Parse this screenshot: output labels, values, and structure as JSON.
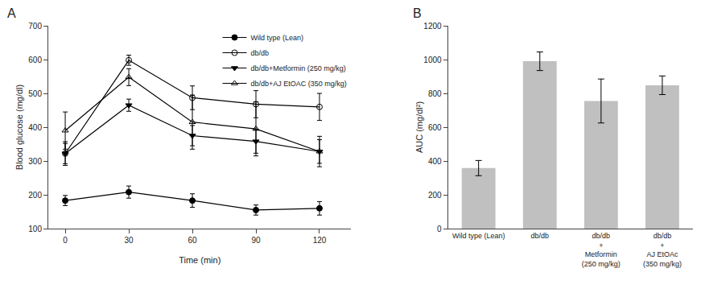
{
  "chart_data": [
    {
      "type": "line",
      "annotations": [
        "A"
      ],
      "xlabel": "Time (min)",
      "ylabel": "Blood glucose (mg/dl)",
      "x": [
        0,
        30,
        60,
        90,
        120
      ],
      "xlim": [
        -8,
        135
      ],
      "xticks": [
        0,
        30,
        60,
        90,
        120
      ],
      "ylim": [
        100,
        700
      ],
      "yticks": [
        100,
        200,
        300,
        400,
        500,
        600,
        700
      ],
      "grid": false,
      "legend": "upper right",
      "series": [
        {
          "name": "Wild type (Lean)",
          "color": "#000000",
          "marker": "circle",
          "line_style": "solid",
          "values": [
            183,
            208,
            183,
            155,
            160
          ],
          "errors": [
            15,
            18,
            20,
            15,
            20
          ]
        },
        {
          "name": "db/db",
          "color": "#000000",
          "marker": "circle-open",
          "line_style": "solid",
          "values": [
            322,
            598,
            487,
            468,
            460
          ],
          "errors": [
            35,
            15,
            35,
            40,
            40
          ]
        },
        {
          "name": "db/db+Metformin (250 mg/kg)",
          "color": "#000000",
          "marker": "triangle-down",
          "line_style": "solid",
          "values": [
            322,
            465,
            375,
            358,
            328
          ],
          "errors": [
            30,
            18,
            30,
            35,
            35
          ]
        },
        {
          "name": "db/db+AJ EtOAC (350 mg/kg)",
          "color": "#000000",
          "marker": "triangle-up-open",
          "line_style": "solid",
          "values": [
            390,
            548,
            415,
            395,
            328
          ],
          "errors": [
            55,
            25,
            80,
            80,
            45
          ]
        }
      ]
    },
    {
      "type": "bar",
      "annotations": [
        "B"
      ],
      "ylabel": "AUC (mg/dl²)",
      "categories": [
        "Wild type (Lean)",
        "db/db",
        "db/db\n+\nMetformin\n(250 mg/kg)",
        "db/db\n+\nAJ EtOAc\n(350 mg/kg)"
      ],
      "values": [
        358,
        990,
        755,
        848
      ],
      "errors": [
        45,
        55,
        130,
        55
      ],
      "color": "#c0c0c0",
      "ylim": [
        0,
        1200
      ],
      "yticks": [
        0,
        200,
        400,
        600,
        800,
        1000,
        1200
      ],
      "grid": false
    }
  ]
}
